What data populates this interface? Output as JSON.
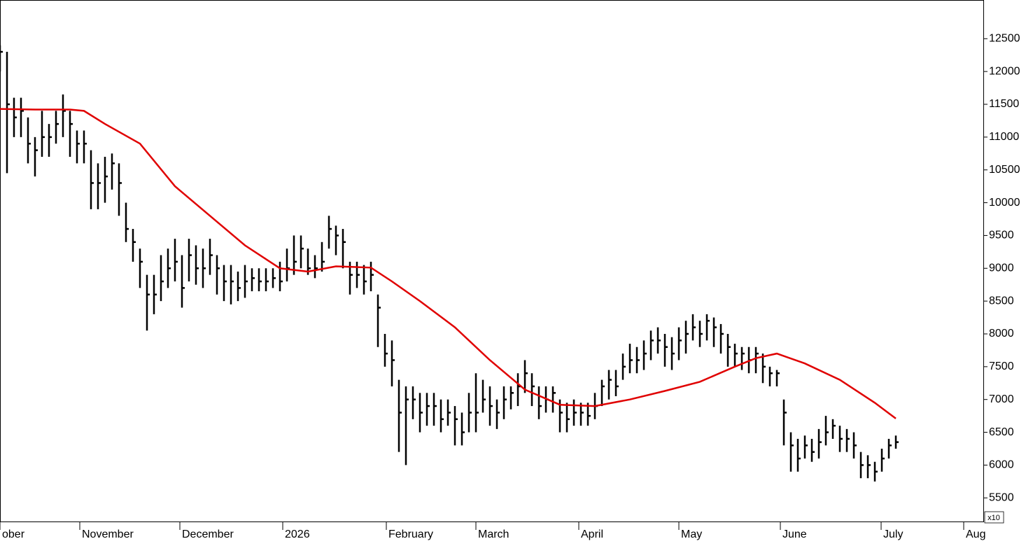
{
  "chart_data": {
    "type": "ohlc",
    "y_multiplier_label": "x10",
    "xlim": [
      0,
      140.5
    ],
    "ylim": [
      5140,
      13090
    ],
    "yticks": [
      5500,
      6000,
      6500,
      7000,
      7500,
      8000,
      8500,
      9000,
      9500,
      10000,
      10500,
      11000,
      11500,
      12000,
      12500
    ],
    "xticks": [
      {
        "value": 0,
        "label": "ober"
      },
      {
        "value": 11.4,
        "label": "November"
      },
      {
        "value": 25.7,
        "label": "December"
      },
      {
        "value": 40.4,
        "label": "2026"
      },
      {
        "value": 55.2,
        "label": "February"
      },
      {
        "value": 68,
        "label": "March"
      },
      {
        "value": 82.7,
        "label": "April"
      },
      {
        "value": 97,
        "label": "May"
      },
      {
        "value": 111.5,
        "label": "June"
      },
      {
        "value": 125.9,
        "label": "July"
      },
      {
        "value": 137.7,
        "label": "Aug"
      }
    ],
    "ohlc": {
      "color": "#000000",
      "x": [
        0,
        1,
        2,
        3,
        4,
        5,
        6,
        7,
        8,
        9,
        10,
        11,
        12,
        13,
        14,
        15,
        16,
        17,
        18,
        19,
        20,
        21,
        22,
        23,
        24,
        25,
        26,
        27,
        28,
        29,
        30,
        31,
        32,
        33,
        34,
        35,
        36,
        37,
        38,
        39,
        40,
        41,
        42,
        43,
        44,
        45,
        46,
        47,
        48,
        49,
        50,
        51,
        52,
        53,
        54,
        55,
        56,
        57,
        58,
        59,
        60,
        61,
        62,
        63,
        64,
        65,
        66,
        67,
        68,
        69,
        70,
        71,
        72,
        73,
        74,
        75,
        76,
        77,
        78,
        79,
        80,
        81,
        82,
        83,
        84,
        85,
        86,
        87,
        88,
        89,
        90,
        91,
        92,
        93,
        94,
        95,
        96,
        97,
        98,
        99,
        100,
        101,
        102,
        103,
        104,
        105,
        106,
        107,
        108,
        109,
        110,
        111,
        112,
        113,
        114,
        115,
        116,
        117,
        118,
        119,
        120,
        121,
        122,
        123,
        124,
        125,
        126,
        127,
        128
      ],
      "high": [
        12400,
        12300,
        11600,
        11600,
        11300,
        11000,
        11400,
        11200,
        11400,
        11650,
        11400,
        11100,
        11100,
        10800,
        10600,
        10700,
        10750,
        10600,
        10000,
        9600,
        9300,
        8900,
        8900,
        9200,
        9300,
        9450,
        9200,
        9450,
        9350,
        9300,
        9450,
        9200,
        9050,
        9050,
        8950,
        9050,
        9000,
        9000,
        9000,
        9000,
        9100,
        9300,
        9500,
        9500,
        9300,
        9200,
        9400,
        9800,
        9650,
        9600,
        9100,
        9100,
        9050,
        9100,
        8600,
        8000,
        7900,
        7300,
        7200,
        7200,
        7100,
        7100,
        7100,
        7000,
        7000,
        6900,
        6800,
        7100,
        7400,
        7300,
        7200,
        7000,
        7200,
        7200,
        7400,
        7600,
        7400,
        7200,
        7200,
        7200,
        7000,
        6950,
        7000,
        6950,
        6950,
        7100,
        7300,
        7450,
        7450,
        7700,
        7850,
        7800,
        7900,
        8050,
        8100,
        8000,
        7950,
        8100,
        8200,
        8300,
        8200,
        8300,
        8250,
        8150,
        8000,
        7850,
        7800,
        7800,
        7800,
        7700,
        7500,
        7450,
        7000,
        6500,
        6400,
        6450,
        6400,
        6550,
        6750,
        6700,
        6600,
        6550,
        6500,
        6200,
        6150,
        6050,
        6250,
        6400,
        6450
      ],
      "low": [
        12000,
        10450,
        11000,
        11000,
        10600,
        10400,
        10700,
        10700,
        10900,
        11000,
        10700,
        10600,
        10600,
        9900,
        9900,
        10000,
        10200,
        9800,
        9400,
        9100,
        8700,
        8050,
        8300,
        8500,
        8700,
        8800,
        8400,
        8800,
        8750,
        8700,
        8900,
        8600,
        8500,
        8450,
        8500,
        8550,
        8650,
        8650,
        8650,
        8700,
        8650,
        8800,
        8900,
        9000,
        8900,
        8850,
        8950,
        9300,
        9200,
        9000,
        8600,
        8700,
        8600,
        8650,
        7800,
        7500,
        7200,
        6200,
        6000,
        6700,
        6500,
        6600,
        6600,
        6500,
        6600,
        6300,
        6300,
        6500,
        6500,
        6800,
        6600,
        6550,
        6700,
        6850,
        6900,
        7100,
        6900,
        6700,
        6800,
        6800,
        6500,
        6500,
        6600,
        6600,
        6600,
        6700,
        6900,
        7000,
        7050,
        7300,
        7400,
        7400,
        7450,
        7600,
        7700,
        7500,
        7450,
        7600,
        7700,
        7900,
        7800,
        7900,
        7800,
        7700,
        7500,
        7500,
        7450,
        7400,
        7400,
        7250,
        7200,
        7200,
        6300,
        5900,
        5900,
        6100,
        6050,
        6100,
        6300,
        6400,
        6200,
        6200,
        6100,
        5800,
        5800,
        5750,
        5900,
        6100,
        6250
      ],
      "close": [
        12300,
        11500,
        11300,
        11400,
        10900,
        10800,
        11000,
        11000,
        11200,
        11400,
        11200,
        10900,
        10900,
        10300,
        10300,
        10400,
        10600,
        10300,
        9600,
        9400,
        9100,
        8600,
        8600,
        8800,
        9000,
        9100,
        8700,
        9200,
        9000,
        9000,
        9200,
        9000,
        8800,
        8800,
        8700,
        8800,
        8850,
        8800,
        8800,
        8850,
        8800,
        9000,
        9100,
        9300,
        9000,
        9000,
        9100,
        9600,
        9500,
        9400,
        8900,
        8900,
        8800,
        8900,
        8400,
        7700,
        7600,
        6800,
        7000,
        7000,
        6800,
        6900,
        6900,
        6700,
        6800,
        6700,
        6500,
        6800,
        6800,
        7000,
        6900,
        6800,
        7000,
        7100,
        7200,
        7400,
        7200,
        6900,
        7000,
        7100,
        6800,
        6700,
        6800,
        6800,
        6750,
        6900,
        7200,
        7300,
        7200,
        7500,
        7600,
        7600,
        7700,
        7900,
        7900,
        7800,
        7700,
        7900,
        8000,
        8100,
        8000,
        8200,
        8100,
        8000,
        7800,
        7700,
        7700,
        7600,
        7700,
        7500,
        7400,
        7400,
        6800,
        6300,
        6100,
        6300,
        6200,
        6350,
        6500,
        6600,
        6400,
        6400,
        6300,
        6000,
        6000,
        5900,
        6100,
        6300,
        6350
      ]
    },
    "moving_average": {
      "color": "#e00000",
      "x": [
        0,
        5,
        10,
        12,
        15,
        20,
        25,
        30,
        35,
        40,
        44,
        48,
        53,
        56,
        60,
        65,
        70,
        75,
        80,
        85,
        90,
        95,
        100,
        105,
        108,
        111,
        115,
        120,
        125,
        128
      ],
      "values": [
        11430,
        11420,
        11420,
        11400,
        11200,
        10900,
        10250,
        9800,
        9350,
        9000,
        8950,
        9030,
        9010,
        8800,
        8500,
        8100,
        7600,
        7150,
        6920,
        6900,
        7000,
        7130,
        7270,
        7500,
        7630,
        7700,
        7550,
        7300,
        6950,
        6710
      ]
    }
  }
}
